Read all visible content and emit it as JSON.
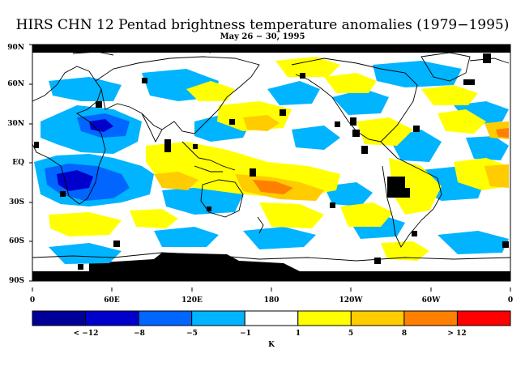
{
  "title": "HIRS CHN 12 Pentad brightness temperature anomalies (1979−1995)",
  "subtitle": "May 26 − 30, 1995",
  "lat_labels": [
    "90N",
    "60N",
    "30N",
    "EQ",
    "30S",
    "60S",
    "90S"
  ],
  "lon_labels": [
    "0",
    "60E",
    "120E",
    "180",
    "120W",
    "60W",
    "0"
  ],
  "colorbar": {
    "labels": [
      "< −12",
      "−8",
      "−5",
      "−1",
      "1",
      "5",
      "8",
      "> 12"
    ],
    "unit": "K",
    "colors": [
      "#000099",
      "#0000cc",
      "#0066ff",
      "#00b4ff",
      "#ffffff",
      "#ffff00",
      "#ffcc00",
      "#ff8000",
      "#ff0000"
    ]
  },
  "legend_map_colors": {
    "missing": "#000000",
    "coastline": "#000000"
  }
}
